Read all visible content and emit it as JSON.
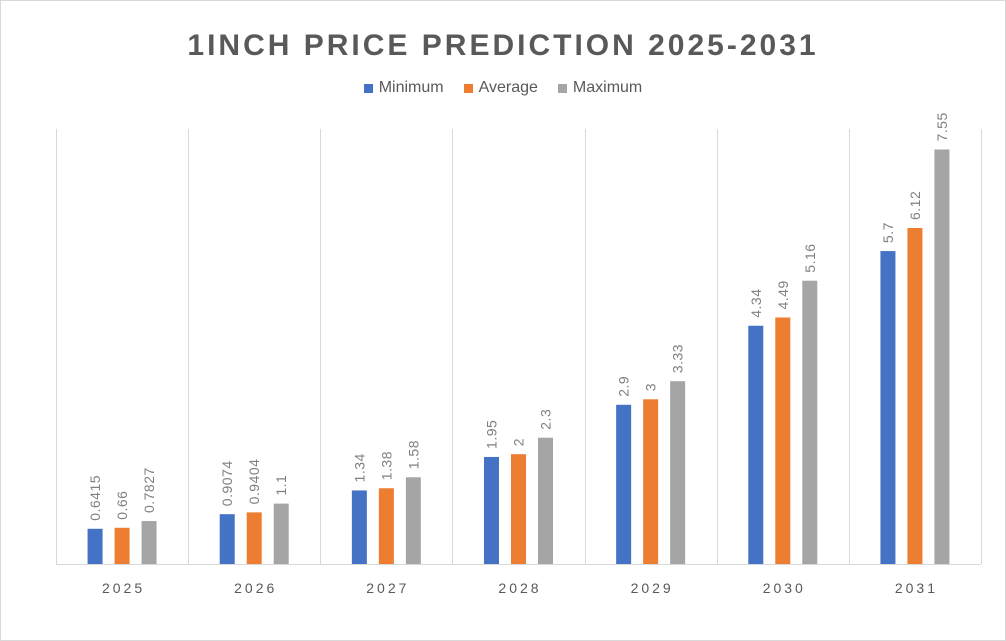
{
  "chart_data": {
    "type": "bar",
    "title": "1INCH PRICE PREDICTION 2025-2031",
    "categories": [
      "2025",
      "2026",
      "2027",
      "2028",
      "2029",
      "2030",
      "2031"
    ],
    "series": [
      {
        "name": "Minimum",
        "color": "#4472c4",
        "values": [
          0.6415,
          0.9074,
          1.34,
          1.95,
          2.9,
          4.34,
          5.7
        ],
        "labels": [
          "0.6415",
          "0.9074",
          "1.34",
          "1.95",
          "2.9",
          "4.34",
          "5.7"
        ]
      },
      {
        "name": "Average",
        "color": "#ed7d31",
        "values": [
          0.66,
          0.9404,
          1.38,
          2,
          3,
          4.49,
          6.12
        ],
        "labels": [
          "0.66",
          "0.9404",
          "1.38",
          "2",
          "3",
          "4.49",
          "6.12"
        ]
      },
      {
        "name": "Maximum",
        "color": "#a5a5a5",
        "values": [
          0.7827,
          1.1,
          1.58,
          2.3,
          3.33,
          5.16,
          7.55
        ],
        "labels": [
          "0.7827",
          "1.1",
          "1.58",
          "2.3",
          "3.33",
          "5.16",
          "7.55"
        ]
      }
    ],
    "ylim": [
      0,
      8
    ],
    "legend": "top-center",
    "grid": "vertical-category-dividers"
  }
}
